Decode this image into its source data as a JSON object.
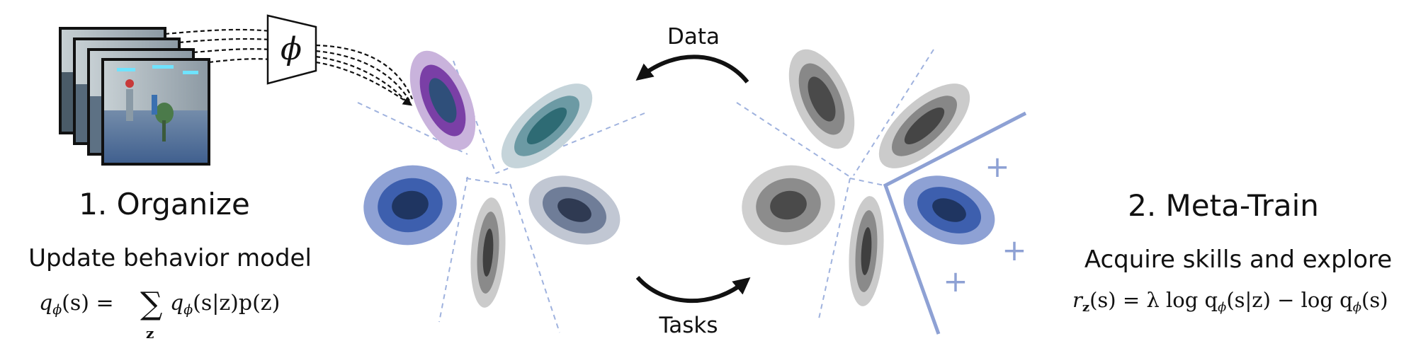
{
  "labels": {
    "data_arrow": "Data",
    "tasks_arrow": "Tasks",
    "phi_symbol": "ϕ",
    "organize_title": "1. Organize",
    "organize_subtitle": "Update behavior model",
    "meta_title": "2. Meta-Train",
    "meta_subtitle": "Acquire skills and explore",
    "plus_sign": "+"
  },
  "equations": {
    "q_lhs": "q",
    "q_sub": "ϕ",
    "q_args": "(s) = ",
    "sum": "∑",
    "sum_sub": "z",
    "q_rhs": "q",
    "q_rhs_sub": "ϕ",
    "q_rhs_args": "(s|z)p(z)",
    "r_lhs": "r",
    "r_sub": "z",
    "r_args": "(s) = λ log q",
    "r_q_sub1": "ϕ",
    "r_mid": "(s|z) − log q",
    "r_q_sub2": "ϕ",
    "r_end": "(s)"
  },
  "colors": {
    "purple": "#7a3fa6",
    "teal": "#3f7f88",
    "blue": "#3d5fae",
    "slate": "#5f6e8c",
    "gray": "#6a6a6a",
    "dashed_boundary": "#9fb2de",
    "solid_boundary": "#8ea1d4",
    "plus": "#8ea1d4"
  }
}
